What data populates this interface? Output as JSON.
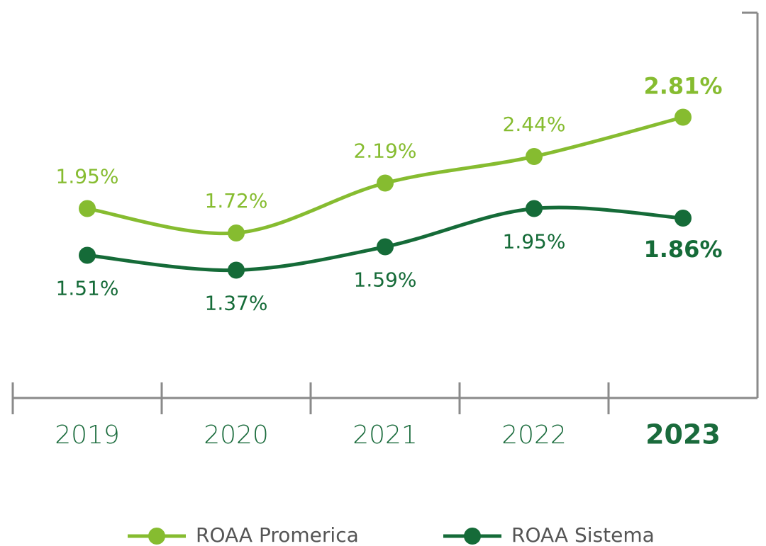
{
  "chart_data": {
    "type": "line",
    "categories": [
      "2019",
      "2020",
      "2021",
      "2022",
      "2023"
    ],
    "series": [
      {
        "name": "ROAA Promerica",
        "color": "#86bc30",
        "values": [
          1.95,
          1.72,
          2.19,
          2.44,
          2.81
        ],
        "value_labels": [
          "1.95%",
          "1.72%",
          "2.19%",
          "2.44%",
          "2.81%"
        ]
      },
      {
        "name": "ROAA Sistema",
        "color": "#156b38",
        "values": [
          1.51,
          1.37,
          1.59,
          1.95,
          1.86
        ],
        "value_labels": [
          "1.51%",
          "1.37%",
          "1.59%",
          "1.95%",
          "1.86%"
        ]
      }
    ],
    "ylim": [
      0.18,
      3.78
    ],
    "legend": "bottom"
  }
}
